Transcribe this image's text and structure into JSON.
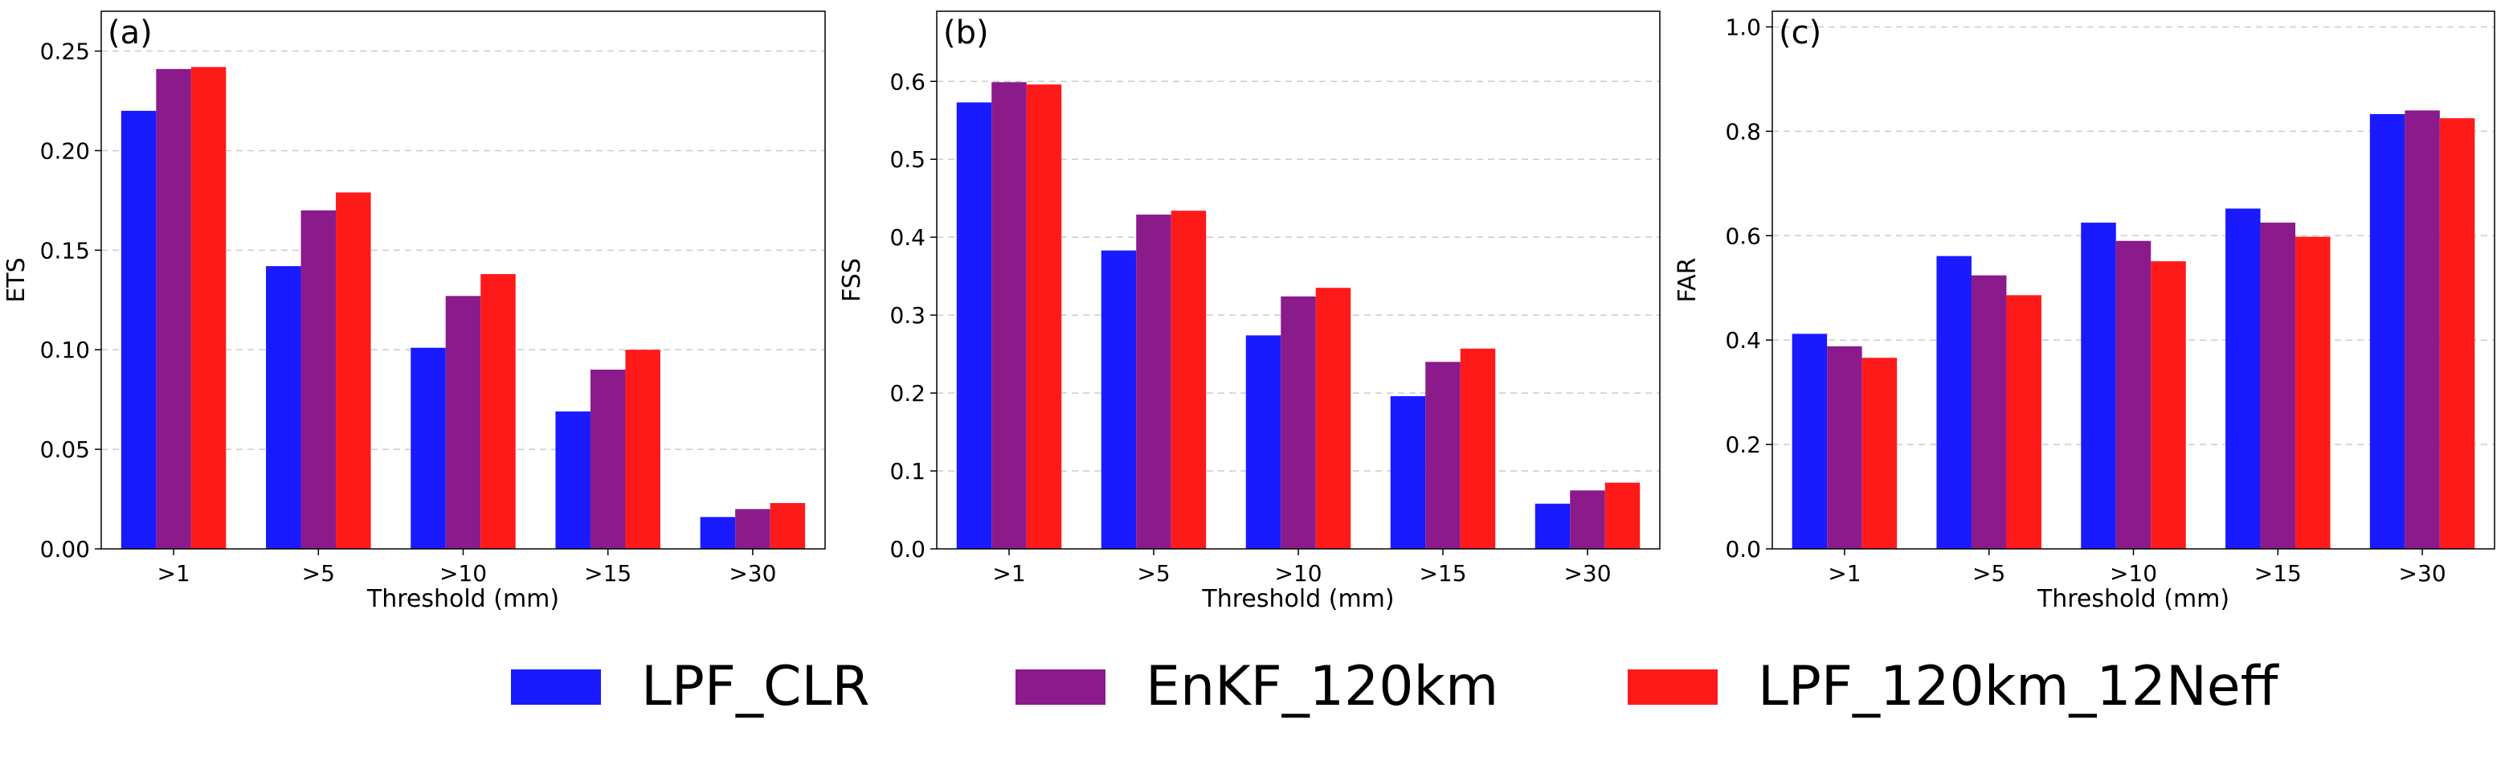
{
  "colors": {
    "LPF_CLR": "#1a1aff",
    "EnKF_120km": "#8b1a8b",
    "LPF_120km_12Neff": "#ff1a1a"
  },
  "legend": [
    {
      "name": "LPF_CLR",
      "color": "#1a1aff"
    },
    {
      "name": "EnKF_120km",
      "color": "#8b1a8b"
    },
    {
      "name": "LPF_120km_12Neff",
      "color": "#ff1a1a"
    }
  ],
  "chart_data": [
    {
      "type": "bar",
      "panel_label": "(a)",
      "categories": [
        ">1",
        ">5",
        ">10",
        ">15",
        ">30"
      ],
      "xlabel": "Threshold (mm)",
      "ylabel": "ETS",
      "ylim": [
        0,
        0.27
      ],
      "yticks": [
        0.0,
        0.05,
        0.1,
        0.15,
        0.2,
        0.25
      ],
      "ytick_labels": [
        "0.00",
        "0.05",
        "0.10",
        "0.15",
        "0.20",
        "0.25"
      ],
      "grid": "horizontal dashed",
      "series": [
        {
          "name": "LPF_CLR",
          "values": [
            0.22,
            0.142,
            0.101,
            0.069,
            0.016
          ]
        },
        {
          "name": "EnKF_120km",
          "values": [
            0.241,
            0.17,
            0.127,
            0.09,
            0.02
          ]
        },
        {
          "name": "LPF_120km_12Neff",
          "values": [
            0.242,
            0.179,
            0.138,
            0.1,
            0.023
          ]
        }
      ]
    },
    {
      "type": "bar",
      "panel_label": "(b)",
      "categories": [
        ">1",
        ">5",
        ">10",
        ">15",
        ">30"
      ],
      "xlabel": "Threshold (mm)",
      "ylabel": "FSS",
      "ylim": [
        0,
        0.69
      ],
      "yticks": [
        0.0,
        0.1,
        0.2,
        0.3,
        0.4,
        0.5,
        0.6
      ],
      "ytick_labels": [
        "0.0",
        "0.1",
        "0.2",
        "0.3",
        "0.4",
        "0.5",
        "0.6"
      ],
      "grid": "horizontal dashed",
      "series": [
        {
          "name": "LPF_CLR",
          "values": [
            0.573,
            0.383,
            0.274,
            0.196,
            0.058
          ]
        },
        {
          "name": "EnKF_120km",
          "values": [
            0.599,
            0.429,
            0.324,
            0.24,
            0.075
          ]
        },
        {
          "name": "LPF_120km_12Neff",
          "values": [
            0.596,
            0.434,
            0.335,
            0.257,
            0.085
          ]
        }
      ]
    },
    {
      "type": "bar",
      "panel_label": "(c)",
      "categories": [
        ">1",
        ">5",
        ">10",
        ">15",
        ">30"
      ],
      "xlabel": "Threshold (mm)",
      "ylabel": "FAR",
      "ylim": [
        0,
        1.03
      ],
      "yticks": [
        0.0,
        0.2,
        0.4,
        0.6,
        0.8,
        1.0
      ],
      "ytick_labels": [
        "0.0",
        "0.2",
        "0.4",
        "0.6",
        "0.8",
        "1.0"
      ],
      "grid": "horizontal dashed",
      "series": [
        {
          "name": "LPF_CLR",
          "values": [
            0.412,
            0.561,
            0.625,
            0.652,
            0.833
          ]
        },
        {
          "name": "EnKF_120km",
          "values": [
            0.388,
            0.524,
            0.59,
            0.625,
            0.84
          ]
        },
        {
          "name": "LPF_120km_12Neff",
          "values": [
            0.366,
            0.486,
            0.551,
            0.598,
            0.825
          ]
        }
      ]
    }
  ]
}
